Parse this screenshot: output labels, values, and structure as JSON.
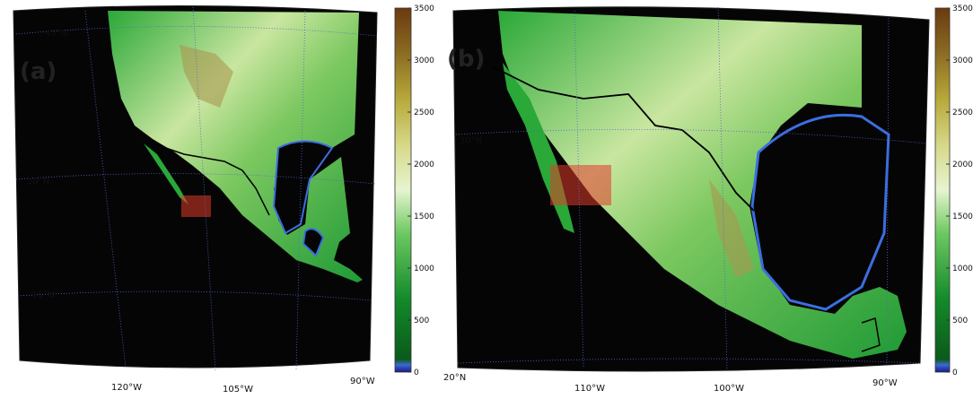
{
  "panels": [
    {
      "label": "(a)",
      "lat_labels": [
        "45°N",
        "30°N",
        "15°N"
      ],
      "lon_labels": [
        "120°W",
        "105°W",
        "90°W"
      ],
      "colorbar": {
        "lim": [
          0,
          3500
        ],
        "ticks": [
          0,
          500,
          1000,
          1500,
          2000,
          2500,
          3000,
          3500
        ]
      }
    },
    {
      "label": "(b)",
      "lat_labels": [
        "30°N",
        "20°N"
      ],
      "lon_labels": [
        "110°W",
        "100°W",
        "90°W"
      ],
      "colorbar": {
        "lim": [
          0,
          3500
        ],
        "ticks": [
          0,
          500,
          1000,
          1500,
          2000,
          2500,
          3000,
          3500
        ]
      }
    }
  ]
}
